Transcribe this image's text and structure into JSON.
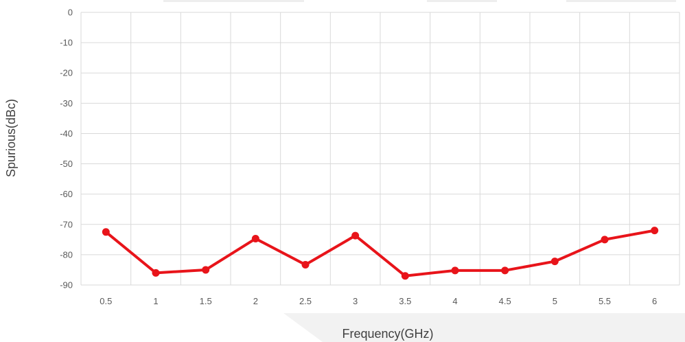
{
  "chart_data": {
    "type": "line",
    "xlabel": "Frequency(GHz)",
    "ylabel": "Spurious(dBc)",
    "categories": [
      "0.5",
      "1",
      "1.5",
      "2",
      "2.5",
      "3",
      "3.5",
      "4",
      "4.5",
      "5",
      "5.5",
      "6"
    ],
    "x": [
      0.5,
      1,
      1.5,
      2,
      2.5,
      3,
      3.5,
      4,
      4.5,
      5,
      5.5,
      6
    ],
    "series": [
      {
        "values": [
          -72.5,
          -86,
          -85,
          -74.7,
          -83.3,
          -73.7,
          -87,
          -85.2,
          -85.2,
          -82.2,
          -75,
          -72
        ]
      }
    ],
    "yticks": [
      0,
      -10,
      -20,
      -30,
      -40,
      -50,
      -60,
      -70,
      -80,
      -90
    ],
    "ylim": [
      -90,
      0
    ],
    "grid": true,
    "legend": "none",
    "colors": {
      "line": "#e8141a",
      "grid": "#d9d9d9",
      "tick_text": "#595959"
    }
  }
}
